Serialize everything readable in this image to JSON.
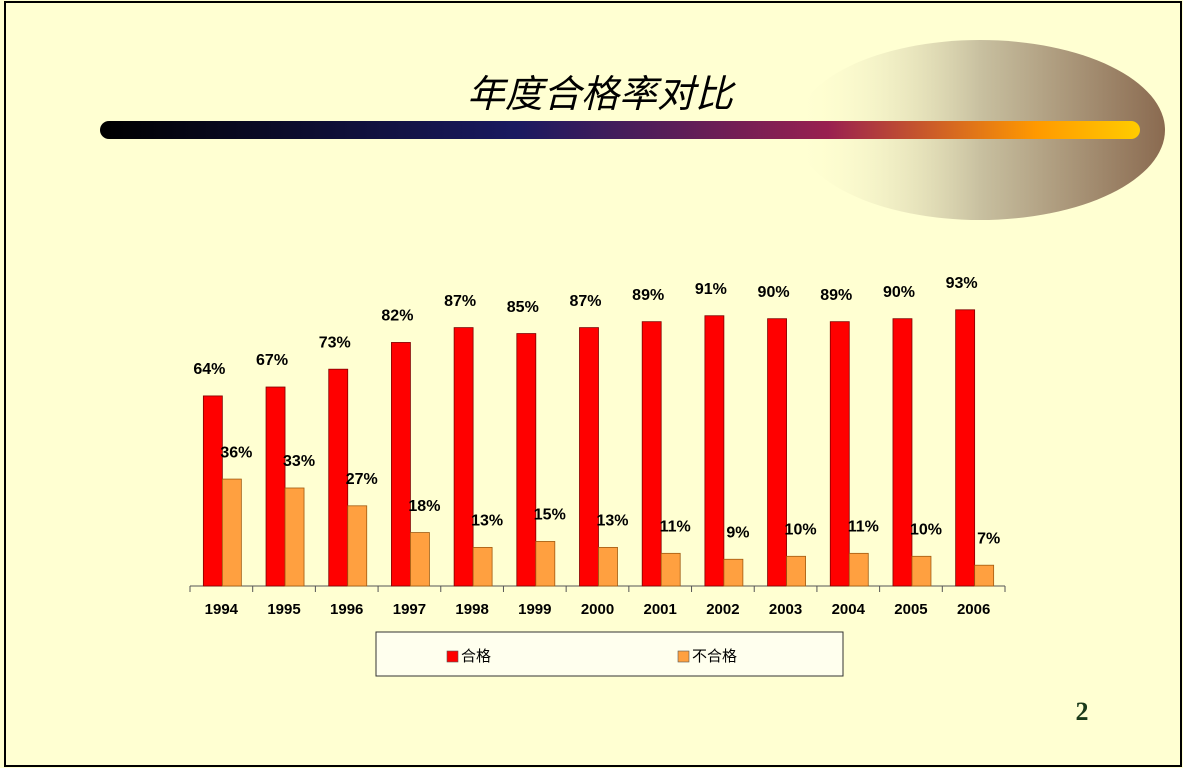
{
  "chart_data": {
    "type": "bar",
    "title": "年度合格率对比",
    "page_number": "2",
    "categories": [
      "1994",
      "1995",
      "1996",
      "1997",
      "1998",
      "1999",
      "2000",
      "2001",
      "2002",
      "2003",
      "2004",
      "2005",
      "2006"
    ],
    "series": [
      {
        "name": "合格",
        "color": "#ff0000",
        "values": [
          64,
          67,
          73,
          82,
          87,
          85,
          87,
          89,
          91,
          90,
          89,
          90,
          93
        ],
        "value_labels": [
          "64%",
          "67%",
          "73%",
          "82%",
          "87%",
          "85%",
          "87%",
          "89%",
          "91%",
          "90%",
          "89%",
          "90%",
          "93%"
        ]
      },
      {
        "name": "不合格",
        "color": "#ffa040",
        "values": [
          36,
          33,
          27,
          18,
          13,
          15,
          13,
          11,
          9,
          10,
          11,
          10,
          7
        ],
        "value_labels": [
          "36%",
          "33%",
          "27%",
          "18%",
          "13%",
          "15%",
          "13%",
          "11%",
          "9%",
          "10%",
          "11%",
          "10%",
          "7%"
        ]
      }
    ],
    "legend": "bottom"
  }
}
